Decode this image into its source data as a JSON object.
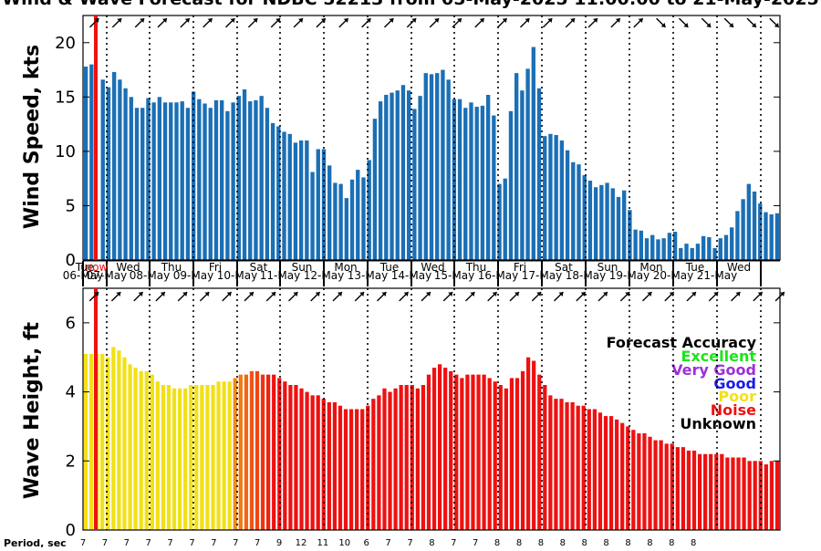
{
  "title": "Wind & Wave Forecast for NDBC 52213 from 05-May-2025 11:00:00 to 21-May-2025",
  "now_label": "now",
  "period_label": "Period, sec",
  "accuracy_legend": {
    "title": "Forecast Accuracy",
    "entries": [
      {
        "label": "Excellent",
        "color": "#19e619"
      },
      {
        "label": "Very Good",
        "color": "#9b30d9"
      },
      {
        "label": "Good",
        "color": "#1a1ae6"
      },
      {
        "label": "Poor",
        "color": "#f2e018"
      },
      {
        "label": "Noise",
        "color": "#ee1111"
      },
      {
        "label": "Unknown",
        "color": "#000000"
      }
    ]
  },
  "day_labels": [
    {
      "dow": "Tue",
      "date": "06-May"
    },
    {
      "dow": "Wed",
      "date": "07-May"
    },
    {
      "dow": "Thu",
      "date": "08-May"
    },
    {
      "dow": "Fri",
      "date": "09-May"
    },
    {
      "dow": "Sat",
      "date": "10-May"
    },
    {
      "dow": "Sun",
      "date": "11-May"
    },
    {
      "dow": "Mon",
      "date": "12-May"
    },
    {
      "dow": "Tue",
      "date": "13-May"
    },
    {
      "dow": "Wed",
      "date": "14-May"
    },
    {
      "dow": "Thu",
      "date": "15-May"
    },
    {
      "dow": "Fri",
      "date": "16-May"
    },
    {
      "dow": "Sat",
      "date": "17-May"
    },
    {
      "dow": "Sun",
      "date": "18-May"
    },
    {
      "dow": "Mon",
      "date": "19-May"
    },
    {
      "dow": "Tue",
      "date": "20-May"
    },
    {
      "dow": "Wed",
      "date": "21-May"
    }
  ],
  "periods": [
    "7",
    "7",
    "7",
    "7",
    "7",
    "7",
    "7",
    "7",
    "7",
    "9",
    "12",
    "11",
    "10",
    "6",
    "7",
    "7",
    "8",
    "7",
    "7",
    "8",
    "8",
    "8",
    "8",
    "8",
    "8",
    "8",
    "8",
    "8",
    "8"
  ],
  "chart_data": [
    {
      "type": "bar",
      "ylabel": "Wind Speed, kts",
      "ylim": [
        0,
        22.5
      ],
      "yticks": [
        0,
        5,
        10,
        15,
        20
      ],
      "time_step_hours": 3,
      "start": "05-May-2025 11:00:00",
      "bar_color": "#1b6fb5",
      "values": [
        17.8,
        18.0,
        0,
        16.6,
        15.9,
        17.3,
        16.6,
        15.8,
        15.0,
        14.0,
        14.0,
        14.9,
        14.5,
        15.0,
        14.5,
        14.5,
        14.5,
        14.6,
        14.0,
        15.5,
        14.8,
        14.4,
        14.0,
        14.7,
        14.7,
        13.7,
        14.5,
        15.1,
        15.7,
        14.6,
        14.7,
        15.1,
        14.0,
        12.6,
        12.3,
        11.8,
        11.6,
        10.8,
        11.0,
        11.0,
        8.1,
        10.2,
        10.2,
        8.7,
        7.1,
        7.0,
        5.7,
        7.4,
        8.3,
        7.6,
        9.2,
        13.0,
        14.6,
        15.2,
        15.4,
        15.6,
        16.1,
        15.6,
        13.9,
        15.1,
        17.2,
        17.1,
        17.2,
        17.5,
        16.6,
        14.8,
        14.8,
        14.0,
        14.5,
        14.1,
        14.2,
        15.2,
        13.3,
        7.0,
        7.5,
        13.7,
        17.2,
        15.6,
        17.6,
        19.6,
        15.8,
        11.4,
        11.6,
        11.5,
        11.0,
        10.1,
        9.0,
        8.8,
        7.8,
        7.3,
        6.7,
        6.9,
        7.1,
        6.6,
        5.8,
        6.4,
        4.6,
        2.8,
        2.7,
        2.0,
        2.3,
        1.9,
        2.0,
        2.5,
        2.6,
        1.1,
        1.5,
        1.1,
        1.5,
        2.2,
        2.1,
        1.1,
        2.0,
        2.3,
        3.0,
        4.5,
        5.6,
        7.0,
        6.3,
        5.2,
        4.4,
        4.2,
        4.3
      ]
    },
    {
      "type": "bar",
      "ylabel": "Wave Height, ft",
      "ylim": [
        0,
        7.0
      ],
      "yticks": [
        0,
        2,
        4,
        6
      ],
      "time_step_hours": 3,
      "start": "05-May-2025 11:00:00",
      "values": [
        5.1,
        5.1,
        5.1,
        5.1,
        5.0,
        5.3,
        5.2,
        5.0,
        4.8,
        4.7,
        4.6,
        4.6,
        4.5,
        4.3,
        4.2,
        4.2,
        4.1,
        4.1,
        4.1,
        4.2,
        4.2,
        4.2,
        4.2,
        4.2,
        4.3,
        4.3,
        4.3,
        4.4,
        4.5,
        4.5,
        4.6,
        4.6,
        4.5,
        4.5,
        4.5,
        4.4,
        4.3,
        4.2,
        4.2,
        4.1,
        4.0,
        3.9,
        3.9,
        3.8,
        3.7,
        3.7,
        3.6,
        3.5,
        3.5,
        3.5,
        3.5,
        3.6,
        3.8,
        3.9,
        4.1,
        4.0,
        4.1,
        4.2,
        4.2,
        4.2,
        4.1,
        4.2,
        4.5,
        4.7,
        4.8,
        4.7,
        4.6,
        4.5,
        4.4,
        4.5,
        4.5,
        4.5,
        4.5,
        4.4,
        4.3,
        4.2,
        4.1,
        4.4,
        4.4,
        4.6,
        5.0,
        4.9,
        4.5,
        4.2,
        3.9,
        3.8,
        3.8,
        3.7,
        3.7,
        3.6,
        3.6,
        3.5,
        3.5,
        3.4,
        3.3,
        3.3,
        3.2,
        3.1,
        3.0,
        2.9,
        2.8,
        2.8,
        2.7,
        2.6,
        2.6,
        2.5,
        2.5,
        2.4,
        2.4,
        2.3,
        2.3,
        2.2,
        2.2,
        2.2,
        2.2,
        2.2,
        2.1,
        2.1,
        2.1,
        2.1,
        2.0,
        2.0,
        2.0,
        1.9,
        2.0,
        2.0
      ],
      "accuracy": [
        "Poor",
        "Poor",
        "Poor",
        "Poor",
        "Poor",
        "Poor",
        "Poor",
        "Poor",
        "Poor",
        "Poor",
        "Poor",
        "Poor",
        "Poor",
        "Poor",
        "Poor",
        "Poor",
        "Poor",
        "Poor",
        "Poor",
        "Poor",
        "Poor",
        "Poor",
        "Poor",
        "Poor",
        "Poor",
        "Poor",
        "Poor",
        "Noise",
        "Noise",
        "Noise",
        "Noise",
        "Noise",
        "Noise",
        "Noise",
        "Noise",
        "Noise",
        "Noise",
        "Noise",
        "Noise",
        "Noise",
        "Noise",
        "Noise",
        "Noise",
        "Noise",
        "Noise",
        "Noise",
        "Noise",
        "Noise",
        "Noise",
        "Noise",
        "Noise",
        "Noise",
        "Noise",
        "Noise",
        "Noise",
        "Noise",
        "Noise",
        "Noise",
        "Noise",
        "Noise",
        "Noise",
        "Noise",
        "Noise",
        "Noise",
        "Noise",
        "Noise",
        "Noise",
        "Noise",
        "Noise",
        "Noise",
        "Noise",
        "Noise",
        "Noise",
        "Noise",
        "Noise",
        "Noise",
        "Noise",
        "Noise",
        "Noise",
        "Noise",
        "Noise",
        "Noise",
        "Noise",
        "Noise",
        "Noise",
        "Noise",
        "Noise",
        "Noise",
        "Noise",
        "Noise",
        "Noise",
        "Noise",
        "Noise",
        "Noise",
        "Noise",
        "Noise",
        "Noise",
        "Noise",
        "Noise",
        "Noise",
        "Noise",
        "Noise",
        "Noise",
        "Noise",
        "Noise",
        "Noise",
        "Noise",
        "Noise",
        "Noise",
        "Noise",
        "Noise",
        "Noise",
        "Noise",
        "Noise",
        "Noise",
        "Noise",
        "Noise",
        "Noise",
        "Noise",
        "Noise",
        "Noise",
        "Noise",
        "Noise",
        "Noise",
        "Noise",
        "Noise"
      ]
    }
  ],
  "wind_direction_deg": [
    225,
    225,
    225,
    225,
    225,
    225,
    225,
    225,
    225,
    225,
    225,
    225,
    225,
    225,
    225,
    225,
    225,
    225,
    225,
    225,
    225,
    225,
    225,
    225,
    225,
    225,
    225,
    225,
    225,
    225,
    225,
    225,
    225,
    225,
    225,
    225,
    225,
    225,
    225,
    225,
    225,
    225,
    225,
    225,
    225,
    225,
    225,
    225,
    225,
    225,
    225,
    225,
    225,
    225,
    225,
    225,
    225,
    225,
    225,
    225,
    225,
    225,
    225,
    225,
    225,
    225,
    225,
    225,
    225,
    225,
    225,
    225,
    225,
    225,
    225,
    225,
    225,
    225,
    225,
    225,
    225,
    225,
    225,
    225,
    225,
    225,
    225,
    225,
    225,
    225,
    225,
    225,
    225,
    225,
    225,
    225,
    225,
    315,
    315,
    315,
    315,
    315,
    315,
    315,
    315,
    315,
    315,
    315,
    315,
    315,
    315,
    315,
    315,
    315,
    315,
    315,
    315,
    315,
    315,
    315,
    315,
    315,
    315
  ],
  "wave_direction_deg": [
    225,
    225,
    225,
    225,
    225,
    225,
    225,
    225,
    225,
    225,
    225,
    225,
    225,
    225,
    225,
    225,
    225,
    225,
    225,
    225,
    225,
    225,
    225,
    225,
    225,
    225,
    225,
    225,
    225,
    225,
    225,
    225,
    225,
    225,
    225,
    225,
    225,
    225,
    225,
    225,
    225,
    225,
    225,
    225,
    225,
    225,
    225,
    225,
    225,
    225,
    225,
    225,
    225,
    225,
    225,
    225,
    225,
    225,
    225,
    225,
    225,
    225,
    225,
    225,
    225,
    225,
    225,
    225,
    225,
    225,
    225,
    225,
    225,
    225,
    225,
    225,
    225,
    225,
    225,
    225,
    225,
    225,
    225,
    225,
    225,
    225,
    225,
    225,
    225,
    225,
    225,
    225,
    225,
    225,
    225,
    225,
    225,
    225,
    225,
    225,
    225,
    225,
    225,
    225,
    225,
    225,
    225,
    225,
    225,
    225,
    225,
    225,
    225,
    225,
    225,
    225,
    225,
    225,
    225,
    225,
    225,
    225,
    225,
    225,
    225,
    225
  ],
  "colors": {
    "wind_bar": "#1b6fb5",
    "now_line": "#ee1111",
    "poor": "#f2e018",
    "noise": "#ee1111"
  }
}
